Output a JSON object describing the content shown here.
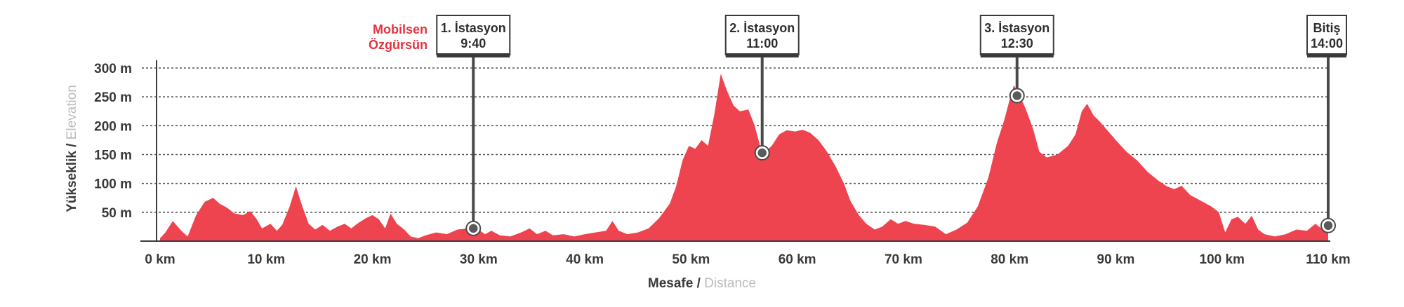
{
  "chart_data": {
    "type": "area",
    "title": "",
    "xlabel": {
      "primary": "Mesafe",
      "separator": " / ",
      "secondary": "Distance"
    },
    "ylabel": {
      "primary": "Yükseklik",
      "separator": " / ",
      "secondary": "Elevation"
    },
    "xlim": [
      0,
      110
    ],
    "ylim": [
      0,
      300
    ],
    "x_ticks": [
      {
        "value": 0,
        "label": "0 km"
      },
      {
        "value": 10,
        "label": "10 km"
      },
      {
        "value": 20,
        "label": "20 km"
      },
      {
        "value": 30,
        "label": "30 km"
      },
      {
        "value": 40,
        "label": "40 km"
      },
      {
        "value": 50,
        "label": "50 km"
      },
      {
        "value": 60,
        "label": "60 km"
      },
      {
        "value": 70,
        "label": "70 km"
      },
      {
        "value": 80,
        "label": "80 km"
      },
      {
        "value": 90,
        "label": "90 km"
      },
      {
        "value": 100,
        "label": "100 km"
      },
      {
        "value": 110,
        "label": "110 km"
      }
    ],
    "y_ticks": [
      {
        "value": 50,
        "label": "50 m"
      },
      {
        "value": 100,
        "label": "100 m"
      },
      {
        "value": 150,
        "label": "150 m"
      },
      {
        "value": 200,
        "label": "200 m"
      },
      {
        "value": 250,
        "label": "250 m"
      },
      {
        "value": 300,
        "label": "300 m"
      }
    ],
    "grid": true,
    "color": "#ee444f",
    "profile": [
      [
        0,
        5
      ],
      [
        0.5,
        15
      ],
      [
        1.2,
        35
      ],
      [
        2,
        18
      ],
      [
        2.6,
        8
      ],
      [
        3.4,
        45
      ],
      [
        4.2,
        68
      ],
      [
        5,
        75
      ],
      [
        5.6,
        65
      ],
      [
        6.3,
        58
      ],
      [
        7,
        48
      ],
      [
        7.8,
        45
      ],
      [
        8.5,
        52
      ],
      [
        9.1,
        38
      ],
      [
        9.6,
        22
      ],
      [
        10.4,
        30
      ],
      [
        11,
        18
      ],
      [
        11.5,
        28
      ],
      [
        12.2,
        60
      ],
      [
        12.8,
        95
      ],
      [
        13.4,
        60
      ],
      [
        14,
        30
      ],
      [
        14.6,
        20
      ],
      [
        15.3,
        28
      ],
      [
        16,
        18
      ],
      [
        16.7,
        25
      ],
      [
        17.4,
        30
      ],
      [
        18,
        22
      ],
      [
        18.7,
        32
      ],
      [
        19.4,
        40
      ],
      [
        20,
        45
      ],
      [
        20.6,
        38
      ],
      [
        21.2,
        22
      ],
      [
        21.7,
        48
      ],
      [
        22.3,
        30
      ],
      [
        23,
        20
      ],
      [
        23.6,
        8
      ],
      [
        24.3,
        5
      ],
      [
        25,
        10
      ],
      [
        26,
        15
      ],
      [
        27,
        12
      ],
      [
        28,
        20
      ],
      [
        29,
        22
      ],
      [
        29.5,
        14
      ],
      [
        30,
        20
      ],
      [
        30.6,
        12
      ],
      [
        31.2,
        18
      ],
      [
        32,
        10
      ],
      [
        33,
        8
      ],
      [
        34,
        15
      ],
      [
        34.8,
        22
      ],
      [
        35.5,
        12
      ],
      [
        36.3,
        18
      ],
      [
        37,
        10
      ],
      [
        38,
        12
      ],
      [
        39,
        8
      ],
      [
        40,
        12
      ],
      [
        41,
        15
      ],
      [
        42,
        18
      ],
      [
        42.6,
        35
      ],
      [
        43.2,
        18
      ],
      [
        44,
        12
      ],
      [
        45,
        15
      ],
      [
        46,
        22
      ],
      [
        47,
        40
      ],
      [
        48,
        65
      ],
      [
        48.6,
        95
      ],
      [
        49.2,
        140
      ],
      [
        49.8,
        165
      ],
      [
        50.4,
        160
      ],
      [
        51,
        175
      ],
      [
        51.6,
        165
      ],
      [
        52.2,
        220
      ],
      [
        52.8,
        290
      ],
      [
        53.4,
        260
      ],
      [
        54,
        235
      ],
      [
        54.6,
        225
      ],
      [
        55.4,
        228
      ],
      [
        56,
        200
      ],
      [
        56.5,
        165
      ],
      [
        57,
        155
      ],
      [
        57.6,
        165
      ],
      [
        58.3,
        185
      ],
      [
        59,
        192
      ],
      [
        59.8,
        190
      ],
      [
        60.5,
        193
      ],
      [
        61.2,
        188
      ],
      [
        62,
        175
      ],
      [
        62.8,
        155
      ],
      [
        63.6,
        130
      ],
      [
        64.4,
        100
      ],
      [
        65,
        70
      ],
      [
        65.8,
        45
      ],
      [
        66.5,
        30
      ],
      [
        67.3,
        20
      ],
      [
        68,
        25
      ],
      [
        68.8,
        38
      ],
      [
        69.5,
        30
      ],
      [
        70.2,
        35
      ],
      [
        71,
        30
      ],
      [
        72,
        28
      ],
      [
        73,
        25
      ],
      [
        74,
        12
      ],
      [
        75,
        20
      ],
      [
        76,
        32
      ],
      [
        77,
        60
      ],
      [
        78,
        110
      ],
      [
        78.8,
        170
      ],
      [
        79.5,
        210
      ],
      [
        80,
        245
      ],
      [
        80.4,
        270
      ],
      [
        80.8,
        258
      ],
      [
        81.5,
        230
      ],
      [
        82.2,
        195
      ],
      [
        82.8,
        155
      ],
      [
        83.5,
        145
      ],
      [
        84.5,
        150
      ],
      [
        85.5,
        165
      ],
      [
        86.2,
        185
      ],
      [
        86.8,
        225
      ],
      [
        87.3,
        238
      ],
      [
        87.9,
        218
      ],
      [
        88.6,
        205
      ],
      [
        89.3,
        190
      ],
      [
        90,
        175
      ],
      [
        91,
        155
      ],
      [
        92,
        140
      ],
      [
        93,
        120
      ],
      [
        94,
        105
      ],
      [
        94.8,
        95
      ],
      [
        95.5,
        90
      ],
      [
        96.2,
        96
      ],
      [
        97,
        80
      ],
      [
        98,
        70
      ],
      [
        99,
        60
      ],
      [
        99.7,
        50
      ],
      [
        100.3,
        15
      ],
      [
        100.9,
        38
      ],
      [
        101.5,
        42
      ],
      [
        102.2,
        30
      ],
      [
        102.8,
        44
      ],
      [
        103.4,
        20
      ],
      [
        104,
        12
      ],
      [
        105,
        8
      ],
      [
        106,
        12
      ],
      [
        107,
        20
      ],
      [
        108,
        18
      ],
      [
        108.8,
        30
      ],
      [
        109.5,
        20
      ],
      [
        110,
        25
      ]
    ],
    "annotations": [
      {
        "label_line1": "1. İstasyon",
        "label_line2": "9:40",
        "x": 29.5,
        "y": 22
      },
      {
        "label_line1": "2. İstasyon",
        "label_line2": "11:00",
        "x": 56.7,
        "y": 153
      },
      {
        "label_line1": "3. İstasyon",
        "label_line2": "12:30",
        "x": 80.7,
        "y": 252
      },
      {
        "label_line1": "Bitiş",
        "label_line2": "14:00",
        "x": 110,
        "y": 27
      }
    ],
    "brand": {
      "line1": "Mobilsen",
      "line2": "Özgürsün",
      "color": "#e5333f"
    }
  }
}
